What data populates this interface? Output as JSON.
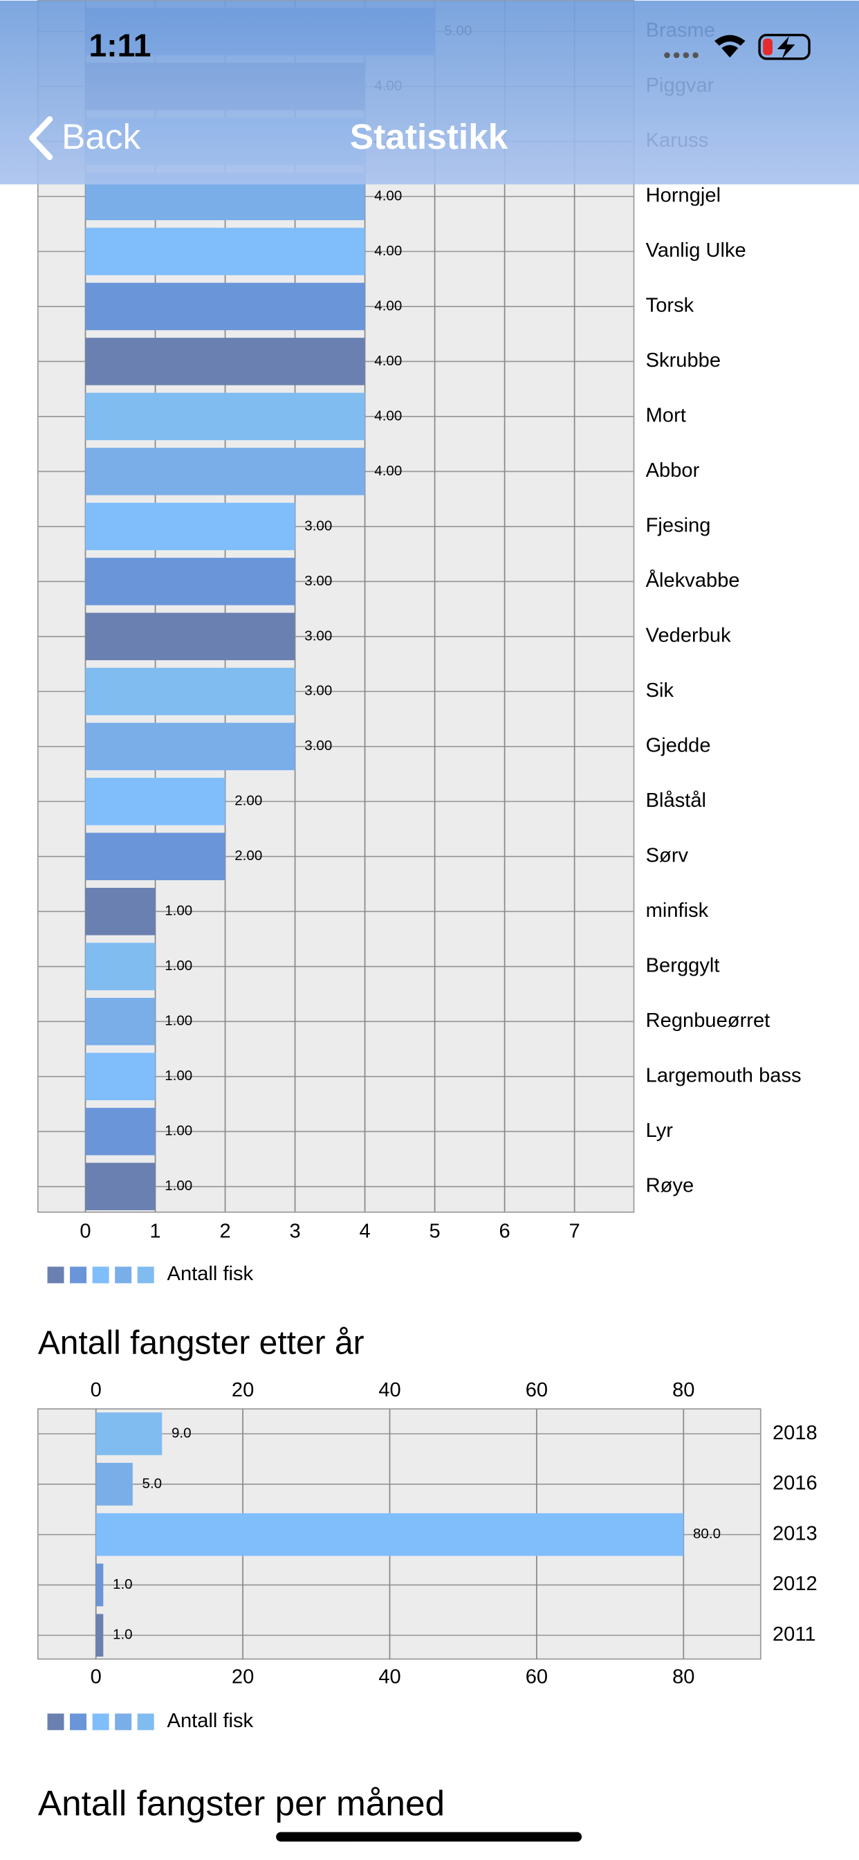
{
  "nav": {
    "time": "1:11",
    "back": "Back",
    "title": "Statistikk"
  },
  "chart_data": [
    {
      "type": "barh",
      "categories": [
        "Brasme",
        "Piggvar",
        "Karuss",
        "Horngjel",
        "Vanlig Ulke",
        "Torsk",
        "Skrubbe",
        "Mort",
        "Abbor",
        "Fjesing",
        "Ålekvabbe",
        "Vederbuk",
        "Sik",
        "Gjedde",
        "Blåstål",
        "Sørv",
        "minfisk",
        "Berggylt",
        "Regnbueørret",
        "Largemouth bass",
        "Lyr",
        "Røye"
      ],
      "series": [
        {
          "name": "Antall fisk",
          "colors": [
            "#6a80b0",
            "#6a95d8",
            "#80bdfb",
            "#7aaee8",
            "#80bcf0"
          ],
          "values": [
            5,
            4,
            4,
            4,
            4,
            4,
            4,
            4,
            4,
            3,
            3,
            3,
            3,
            3,
            2,
            2,
            1,
            1,
            1,
            1,
            1,
            1
          ],
          "value_labels": [
            "5.00",
            "4.00",
            "4.00",
            "4.00",
            "4.00",
            "4.00",
            "4.00",
            "4.00",
            "4.00",
            "3.00",
            "3.00",
            "3.00",
            "3.00",
            "3.00",
            "2.00",
            "2.00",
            "1.00",
            "1.00",
            "1.00",
            "1.00",
            "1.00",
            "1.00"
          ]
        }
      ],
      "xlim": [
        -0.68,
        7.85
      ],
      "xticks": [
        0,
        1,
        2,
        3,
        4,
        5,
        6,
        7
      ],
      "grid": true
    },
    {
      "type": "barh",
      "title": "Antall fangster etter år",
      "categories": [
        "2018",
        "2016",
        "2013",
        "2012",
        "2011"
      ],
      "series": [
        {
          "name": "Antall fisk",
          "colors": [
            "#6a80b0",
            "#6a95d8",
            "#80bdfb",
            "#7aaee8",
            "#80bcf0"
          ],
          "values": [
            9,
            5,
            80,
            1,
            1
          ],
          "value_labels": [
            "9.0",
            "5.0",
            "80.0",
            "1.0",
            "1.0"
          ]
        }
      ],
      "xlim": [
        -7.9,
        90.5
      ],
      "xticks": [
        0,
        20,
        40,
        60,
        80
      ],
      "grid": true
    }
  ],
  "next_section_title": "Antall fangster per måned"
}
